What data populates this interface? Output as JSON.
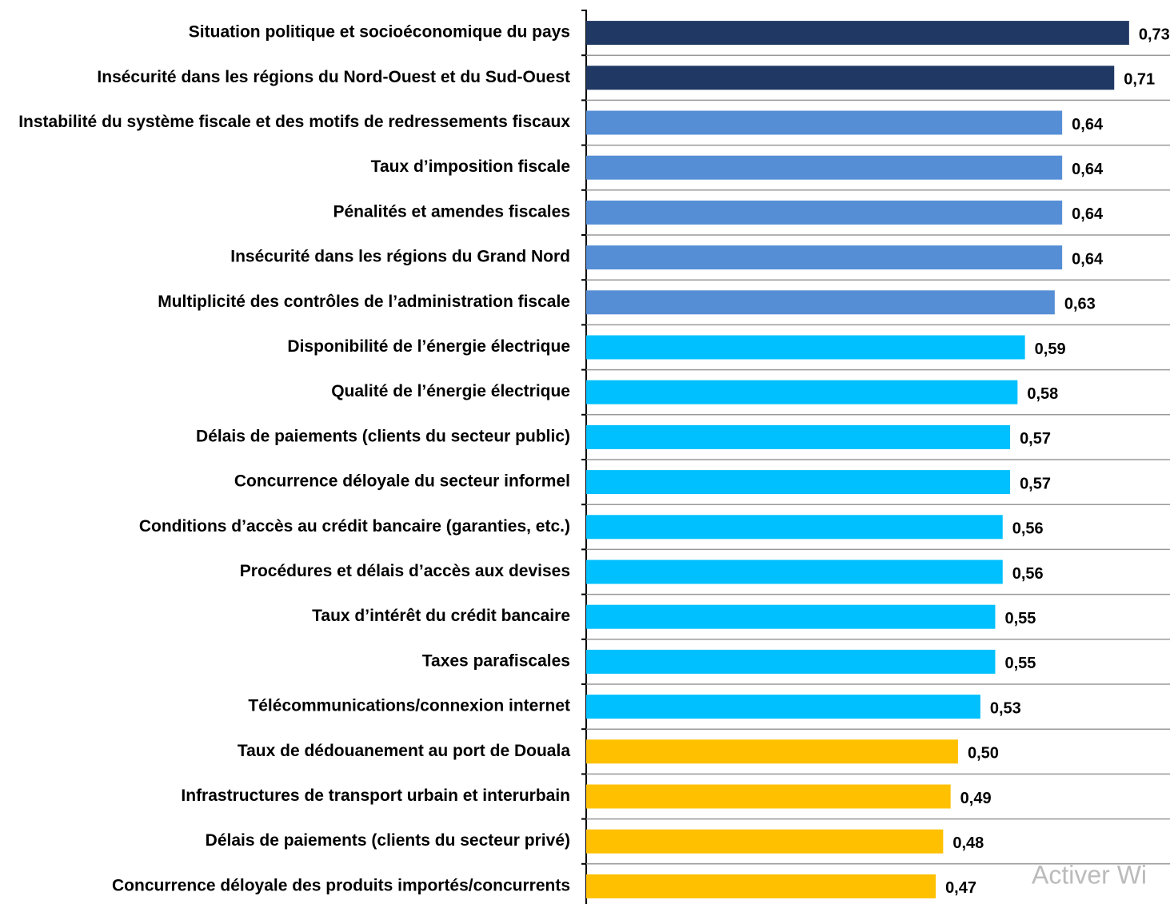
{
  "chart_data": {
    "type": "barh",
    "categories": [
      "Situation politique et socioéconomique du pays",
      "Insécurité dans les régions du Nord-Ouest et du Sud-Ouest",
      "Instabilité du système fiscale et des motifs de redressements fiscaux",
      "Taux d’imposition fiscale",
      "Pénalités et amendes fiscales",
      "Insécurité dans les régions du Grand Nord",
      "Multiplicité des contrôles de l’administration fiscale",
      "Disponibilité de l’énergie électrique",
      "Qualité de l’énergie électrique",
      "Délais de paiements (clients du secteur public)",
      "Concurrence déloyale du secteur informel",
      "Conditions d’accès au crédit bancaire (garanties, etc.)",
      "Procédures et délais d’accès aux devises",
      "Taux d’intérêt du crédit bancaire",
      "Taxes parafiscales",
      "Télécommunications/connexion internet",
      "Taux de dédouanement au port de Douala",
      "Infrastructures de transport urbain et interurbain",
      "Délais de paiements (clients du secteur privé)",
      "Concurrence déloyale des produits importés/concurrents"
    ],
    "values": [
      0.73,
      0.71,
      0.64,
      0.64,
      0.64,
      0.64,
      0.63,
      0.59,
      0.58,
      0.57,
      0.57,
      0.56,
      0.56,
      0.55,
      0.55,
      0.53,
      0.5,
      0.49,
      0.48,
      0.47
    ],
    "value_labels": [
      "0,73",
      "0,71",
      "0,64",
      "0,64",
      "0,64",
      "0,64",
      "0,63",
      "0,59",
      "0,58",
      "0,57",
      "0,57",
      "0,56",
      "0,56",
      "0,55",
      "0,55",
      "0,53",
      "0,50",
      "0,49",
      "0,48",
      "0,47"
    ],
    "colors": [
      "#1f3864",
      "#1f3864",
      "#558ed5",
      "#558ed5",
      "#558ed5",
      "#558ed5",
      "#558ed5",
      "#00c0ff",
      "#00c0ff",
      "#00c0ff",
      "#00c0ff",
      "#00c0ff",
      "#00c0ff",
      "#00c0ff",
      "#00c0ff",
      "#00c0ff",
      "#ffc000",
      "#ffc000",
      "#ffc000",
      "#ffc000"
    ],
    "xlim": [
      0,
      0.785
    ],
    "watermark": "Activer Wi"
  }
}
